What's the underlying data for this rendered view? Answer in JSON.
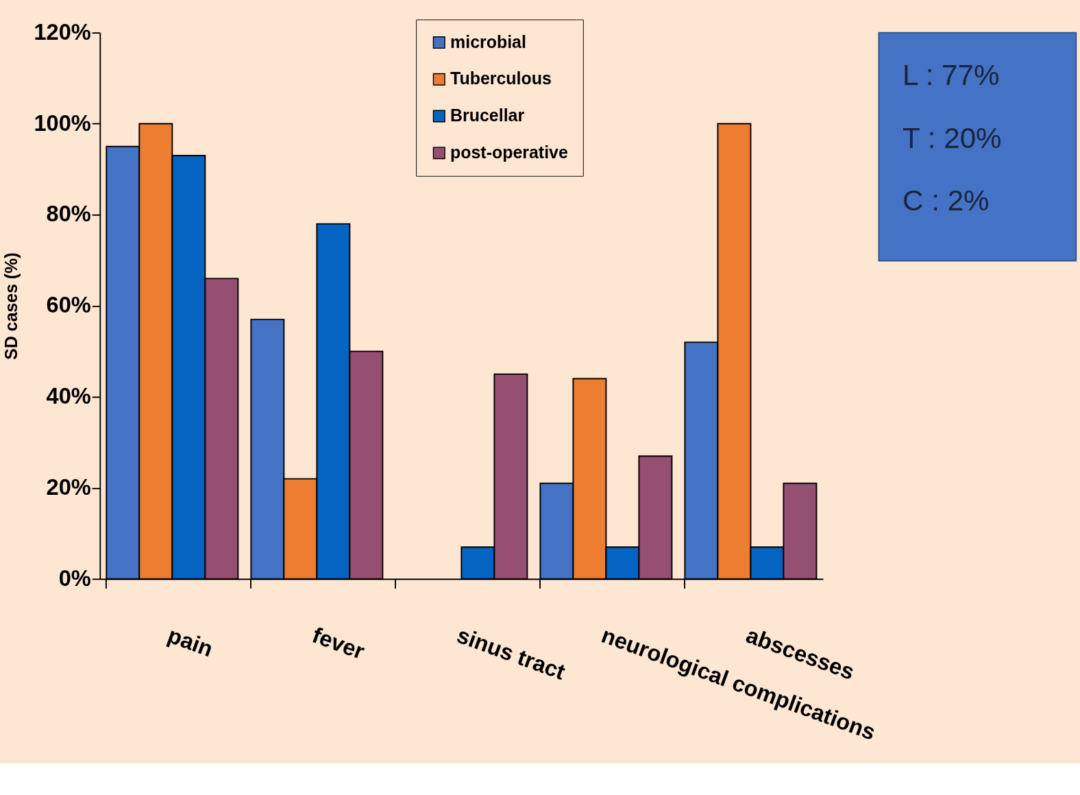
{
  "chart_data": {
    "type": "bar",
    "ylabel": "SD cases (%)",
    "categories": [
      "pain",
      "fever",
      "sinus tract",
      "neurological complications",
      "abscesses"
    ],
    "series": [
      {
        "name": "microbial",
        "color": "#4472c4",
        "values": [
          95,
          57,
          null,
          21,
          52
        ]
      },
      {
        "name": "Tuberculous",
        "color": "#ed7d31",
        "values": [
          100,
          22,
          null,
          44,
          100
        ]
      },
      {
        "name": "Brucellar",
        "color": "#0563c1",
        "values": [
          93,
          78,
          7,
          7,
          7
        ]
      },
      {
        "name": "post-operative",
        "color": "#954f72",
        "values": [
          66,
          50,
          45,
          27,
          21
        ]
      }
    ],
    "ylim": [
      0,
      120
    ],
    "yticks": [
      {
        "value": 0,
        "label": "0%"
      },
      {
        "value": 20,
        "label": "20%"
      },
      {
        "value": 40,
        "label": "40%"
      },
      {
        "value": 60,
        "label": "60%"
      },
      {
        "value": 80,
        "label": "80%"
      },
      {
        "value": 100,
        "label": "100%"
      },
      {
        "value": 120,
        "label": "120%"
      }
    ],
    "legend": "top",
    "grid": false,
    "annotations": [
      "L : 77%\nT : 20%\nC :  2%"
    ]
  }
}
